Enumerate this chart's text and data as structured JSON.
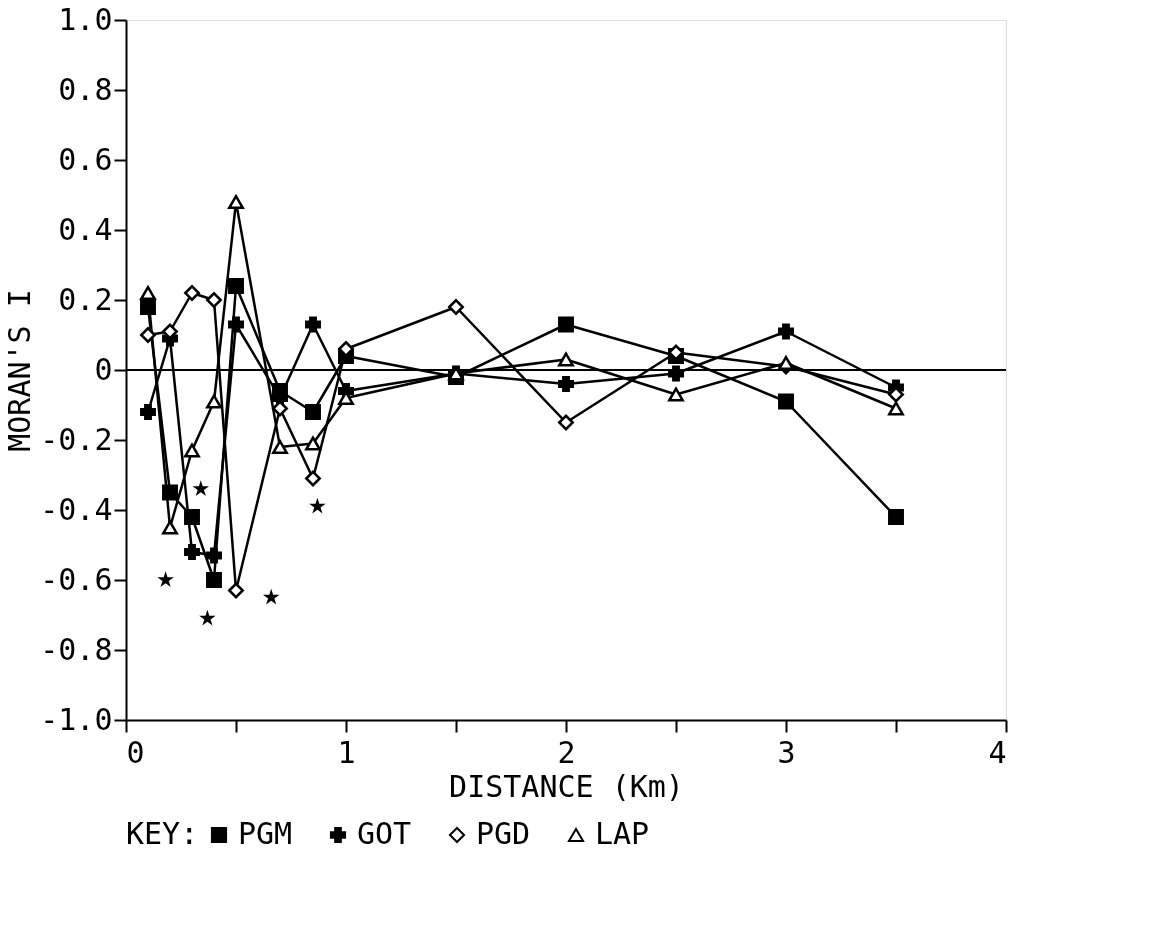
{
  "chart_data": {
    "type": "line",
    "xlabel": "DISTANCE (Km)",
    "ylabel": "MORAN'S I",
    "legend_title": "KEY:",
    "legend": "bottom",
    "grid": false,
    "xlim": [
      0,
      4
    ],
    "ylim": [
      -1.0,
      1.0
    ],
    "xticks": [
      0,
      {
        "value": 0.5,
        "label": null
      },
      1,
      {
        "value": 1.5,
        "label": null
      },
      2,
      {
        "value": 2.5,
        "label": null
      },
      3,
      {
        "value": 3.5,
        "label": null
      },
      4
    ],
    "yticks": [
      {
        "value": -1.0,
        "label": "-1.0"
      },
      -0.8,
      -0.6,
      -0.4,
      -0.2,
      0,
      0.2,
      0.4,
      0.6,
      0.8,
      {
        "value": 1.0,
        "label": "1.0"
      }
    ],
    "ref_lines": [
      {
        "axis": "y",
        "value": 0,
        "label": null,
        "color": "#000000"
      }
    ],
    "series": [
      {
        "name": "PGM",
        "color": "#000000",
        "marker": "square",
        "x": [
          0.1,
          0.2,
          0.3,
          0.4,
          0.5,
          0.7,
          0.85,
          1.0,
          1.5,
          2.0,
          2.5,
          3.0,
          3.5
        ],
        "values": [
          0.18,
          -0.35,
          -0.42,
          -0.6,
          0.24,
          -0.06,
          -0.12,
          0.04,
          -0.02,
          0.13,
          0.04,
          -0.09,
          -0.42
        ]
      },
      {
        "name": "GOT",
        "color": "#000000",
        "marker": "cross",
        "x": [
          0.1,
          0.2,
          0.3,
          0.4,
          0.5,
          0.7,
          0.85,
          1.0,
          1.5,
          2.0,
          2.5,
          3.0,
          3.5
        ],
        "values": [
          -0.12,
          0.09,
          -0.52,
          -0.53,
          0.13,
          -0.08,
          0.13,
          -0.06,
          -0.01,
          -0.04,
          -0.01,
          0.11,
          -0.05
        ]
      },
      {
        "name": "PGD",
        "color": "#000000",
        "marker": "diamond",
        "x": [
          0.1,
          0.2,
          0.3,
          0.4,
          0.5,
          0.7,
          0.85,
          1.0,
          1.5,
          2.0,
          2.5,
          3.0,
          3.5
        ],
        "values": [
          0.1,
          0.11,
          0.22,
          0.2,
          -0.63,
          -0.11,
          -0.31,
          0.06,
          0.18,
          -0.15,
          0.05,
          0.01,
          -0.07
        ]
      },
      {
        "name": "LAP",
        "color": "#000000",
        "marker": "triangle",
        "x": [
          0.1,
          0.2,
          0.3,
          0.4,
          0.5,
          0.7,
          0.85,
          1.0,
          1.5,
          2.0,
          2.5,
          3.0,
          3.5
        ],
        "values": [
          0.22,
          -0.45,
          -0.23,
          -0.09,
          0.48,
          -0.22,
          -0.21,
          -0.08,
          -0.01,
          0.03,
          -0.07,
          0.02,
          -0.11
        ]
      },
      {
        "type": "scatter",
        "color": "#000000",
        "marker": "star",
        "x": [
          0.18,
          0.34,
          0.37,
          0.66,
          0.87
        ],
        "values": [
          -0.6,
          -0.34,
          -0.71,
          -0.65,
          -0.39
        ]
      }
    ]
  }
}
